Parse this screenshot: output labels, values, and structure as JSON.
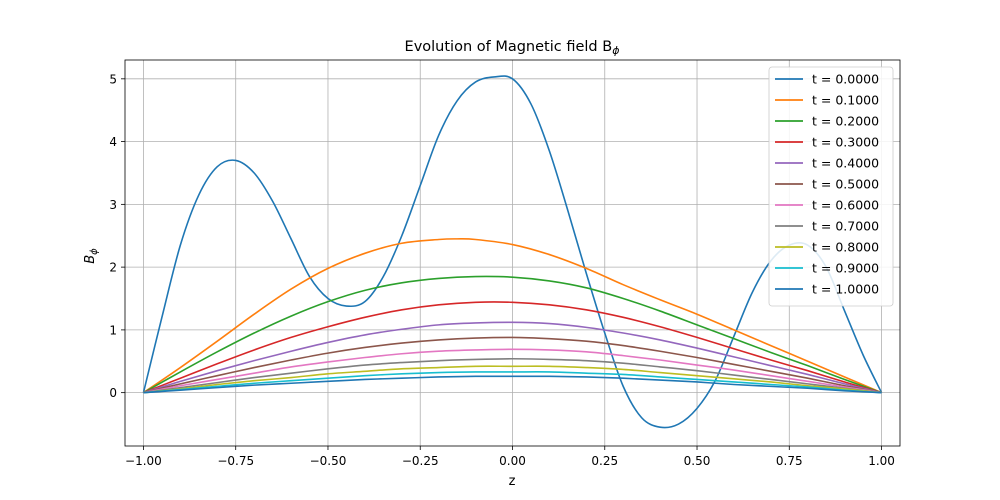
{
  "chart_data": {
    "type": "line",
    "title": "Evolution of Magnetic field B",
    "title_subscript": "ϕ",
    "xlabel": "z",
    "ylabel": "B",
    "ylabel_subscript": "ϕ",
    "xlim": [
      -1.05,
      1.05
    ],
    "ylim": [
      -0.85,
      5.3
    ],
    "xticks": [
      -1.0,
      -0.75,
      -0.5,
      -0.25,
      0.0,
      0.25,
      0.5,
      0.75,
      1.0
    ],
    "xtick_labels": [
      "−1.00",
      "−0.75",
      "−0.50",
      "−0.25",
      "0.00",
      "0.25",
      "0.50",
      "0.75",
      "1.00"
    ],
    "yticks": [
      0,
      1,
      2,
      3,
      4,
      5
    ],
    "ytick_labels": [
      "0",
      "1",
      "2",
      "3",
      "4",
      "5"
    ],
    "grid": true,
    "legend_position": "top-right",
    "series": [
      {
        "name": "t = 0.0000",
        "color": "#1f77b4",
        "x": [
          -1.0,
          -0.95,
          -0.9,
          -0.85,
          -0.8,
          -0.75,
          -0.7,
          -0.65,
          -0.6,
          -0.55,
          -0.5,
          -0.45,
          -0.4,
          -0.35,
          -0.3,
          -0.25,
          -0.2,
          -0.15,
          -0.1,
          -0.05,
          0.0,
          0.05,
          0.1,
          0.15,
          0.2,
          0.25,
          0.3,
          0.35,
          0.4,
          0.45,
          0.5,
          0.55,
          0.6,
          0.65,
          0.7,
          0.75,
          0.8,
          0.85,
          0.9,
          0.95,
          1.0
        ],
        "y": [
          0.0,
          1.2,
          2.35,
          3.15,
          3.6,
          3.7,
          3.5,
          3.05,
          2.45,
          1.85,
          1.5,
          1.38,
          1.45,
          1.85,
          2.5,
          3.3,
          4.1,
          4.65,
          4.95,
          5.03,
          5.0,
          4.6,
          3.85,
          2.9,
          1.9,
          0.95,
          0.1,
          -0.4,
          -0.55,
          -0.5,
          -0.25,
          0.2,
          0.9,
          1.6,
          2.1,
          2.35,
          2.35,
          2.0,
          1.3,
          0.6,
          0.0
        ]
      },
      {
        "name": "t = 0.1000",
        "color": "#ff7f0e",
        "x": [
          -1.0,
          -0.9,
          -0.8,
          -0.7,
          -0.6,
          -0.5,
          -0.4,
          -0.3,
          -0.2,
          -0.15,
          -0.1,
          0.0,
          0.1,
          0.2,
          0.3,
          0.4,
          0.5,
          0.6,
          0.7,
          0.8,
          0.9,
          1.0
        ],
        "y": [
          0.0,
          0.4,
          0.82,
          1.25,
          1.65,
          1.98,
          2.22,
          2.38,
          2.44,
          2.45,
          2.44,
          2.36,
          2.2,
          1.98,
          1.72,
          1.48,
          1.25,
          1.0,
          0.75,
          0.5,
          0.25,
          0.0
        ]
      },
      {
        "name": "t = 0.2000",
        "color": "#2ca02c",
        "x": [
          -1.0,
          -0.9,
          -0.8,
          -0.7,
          -0.6,
          -0.5,
          -0.4,
          -0.3,
          -0.2,
          -0.1,
          0.0,
          0.1,
          0.2,
          0.3,
          0.4,
          0.5,
          0.6,
          0.7,
          0.8,
          0.9,
          1.0
        ],
        "y": [
          0.0,
          0.33,
          0.65,
          0.95,
          1.22,
          1.45,
          1.63,
          1.75,
          1.82,
          1.85,
          1.84,
          1.78,
          1.67,
          1.5,
          1.3,
          1.08,
          0.86,
          0.64,
          0.43,
          0.21,
          0.0
        ]
      },
      {
        "name": "t = 0.3000",
        "color": "#d62728",
        "x": [
          -1.0,
          -0.9,
          -0.8,
          -0.7,
          -0.6,
          -0.5,
          -0.4,
          -0.3,
          -0.2,
          -0.1,
          0.0,
          0.1,
          0.2,
          0.3,
          0.4,
          0.5,
          0.6,
          0.7,
          0.8,
          0.9,
          1.0
        ],
        "y": [
          0.0,
          0.23,
          0.46,
          0.68,
          0.88,
          1.05,
          1.2,
          1.32,
          1.4,
          1.44,
          1.44,
          1.4,
          1.32,
          1.2,
          1.05,
          0.88,
          0.7,
          0.52,
          0.35,
          0.17,
          0.0
        ]
      },
      {
        "name": "t = 0.4000",
        "color": "#9467bd",
        "x": [
          -1.0,
          -0.9,
          -0.8,
          -0.7,
          -0.6,
          -0.5,
          -0.4,
          -0.3,
          -0.2,
          -0.1,
          0.0,
          0.1,
          0.2,
          0.3,
          0.4,
          0.5,
          0.6,
          0.7,
          0.8,
          0.9,
          1.0
        ],
        "y": [
          0.0,
          0.18,
          0.35,
          0.51,
          0.66,
          0.8,
          0.92,
          1.01,
          1.08,
          1.11,
          1.12,
          1.1,
          1.04,
          0.95,
          0.84,
          0.71,
          0.57,
          0.43,
          0.29,
          0.14,
          0.0
        ]
      },
      {
        "name": "t = 0.5000",
        "color": "#8c564b",
        "x": [
          -1.0,
          -0.9,
          -0.8,
          -0.7,
          -0.6,
          -0.5,
          -0.4,
          -0.3,
          -0.2,
          -0.1,
          0.0,
          0.1,
          0.2,
          0.3,
          0.4,
          0.5,
          0.6,
          0.7,
          0.8,
          0.9,
          1.0
        ],
        "y": [
          0.0,
          0.14,
          0.27,
          0.4,
          0.52,
          0.63,
          0.72,
          0.79,
          0.84,
          0.87,
          0.88,
          0.86,
          0.82,
          0.75,
          0.66,
          0.56,
          0.45,
          0.34,
          0.23,
          0.11,
          0.0
        ]
      },
      {
        "name": "t = 0.6000",
        "color": "#e377c2",
        "x": [
          -1.0,
          -0.9,
          -0.8,
          -0.7,
          -0.6,
          -0.5,
          -0.4,
          -0.3,
          -0.2,
          -0.1,
          0.0,
          0.1,
          0.2,
          0.3,
          0.4,
          0.5,
          0.6,
          0.7,
          0.8,
          0.9,
          1.0
        ],
        "y": [
          0.0,
          0.11,
          0.21,
          0.31,
          0.41,
          0.49,
          0.56,
          0.62,
          0.66,
          0.68,
          0.69,
          0.68,
          0.65,
          0.59,
          0.52,
          0.44,
          0.36,
          0.27,
          0.18,
          0.09,
          0.0
        ]
      },
      {
        "name": "t = 0.7000",
        "color": "#7f7f7f",
        "x": [
          -1.0,
          -0.9,
          -0.8,
          -0.7,
          -0.6,
          -0.5,
          -0.4,
          -0.3,
          -0.2,
          -0.1,
          0.0,
          0.1,
          0.2,
          0.3,
          0.4,
          0.5,
          0.6,
          0.7,
          0.8,
          0.9,
          1.0
        ],
        "y": [
          0.0,
          0.08,
          0.16,
          0.24,
          0.31,
          0.38,
          0.44,
          0.48,
          0.51,
          0.53,
          0.54,
          0.53,
          0.51,
          0.47,
          0.41,
          0.35,
          0.28,
          0.21,
          0.14,
          0.07,
          0.0
        ]
      },
      {
        "name": "t = 0.8000",
        "color": "#bcbd22",
        "x": [
          -1.0,
          -0.9,
          -0.8,
          -0.7,
          -0.6,
          -0.5,
          -0.4,
          -0.3,
          -0.2,
          -0.1,
          0.0,
          0.1,
          0.2,
          0.3,
          0.4,
          0.5,
          0.6,
          0.7,
          0.8,
          0.9,
          1.0
        ],
        "y": [
          0.0,
          0.06,
          0.13,
          0.19,
          0.24,
          0.3,
          0.34,
          0.38,
          0.4,
          0.42,
          0.42,
          0.42,
          0.4,
          0.37,
          0.32,
          0.27,
          0.22,
          0.17,
          0.11,
          0.06,
          0.0
        ]
      },
      {
        "name": "t = 0.9000",
        "color": "#17becf",
        "x": [
          -1.0,
          -0.9,
          -0.8,
          -0.7,
          -0.6,
          -0.5,
          -0.4,
          -0.3,
          -0.2,
          -0.1,
          0.0,
          0.1,
          0.2,
          0.3,
          0.4,
          0.5,
          0.6,
          0.7,
          0.8,
          0.9,
          1.0
        ],
        "y": [
          0.0,
          0.05,
          0.1,
          0.15,
          0.19,
          0.23,
          0.27,
          0.3,
          0.32,
          0.33,
          0.33,
          0.33,
          0.31,
          0.29,
          0.25,
          0.21,
          0.17,
          0.13,
          0.09,
          0.04,
          0.0
        ]
      },
      {
        "name": "t = 1.0000",
        "color": "#1f77b4",
        "x": [
          -1.0,
          -0.9,
          -0.8,
          -0.7,
          -0.6,
          -0.5,
          -0.4,
          -0.3,
          -0.2,
          -0.1,
          0.0,
          0.1,
          0.2,
          0.3,
          0.4,
          0.5,
          0.6,
          0.7,
          0.8,
          0.9,
          1.0
        ],
        "y": [
          0.0,
          0.04,
          0.08,
          0.12,
          0.15,
          0.18,
          0.21,
          0.23,
          0.25,
          0.26,
          0.26,
          0.26,
          0.25,
          0.23,
          0.2,
          0.17,
          0.13,
          0.1,
          0.07,
          0.03,
          0.0
        ]
      }
    ]
  }
}
